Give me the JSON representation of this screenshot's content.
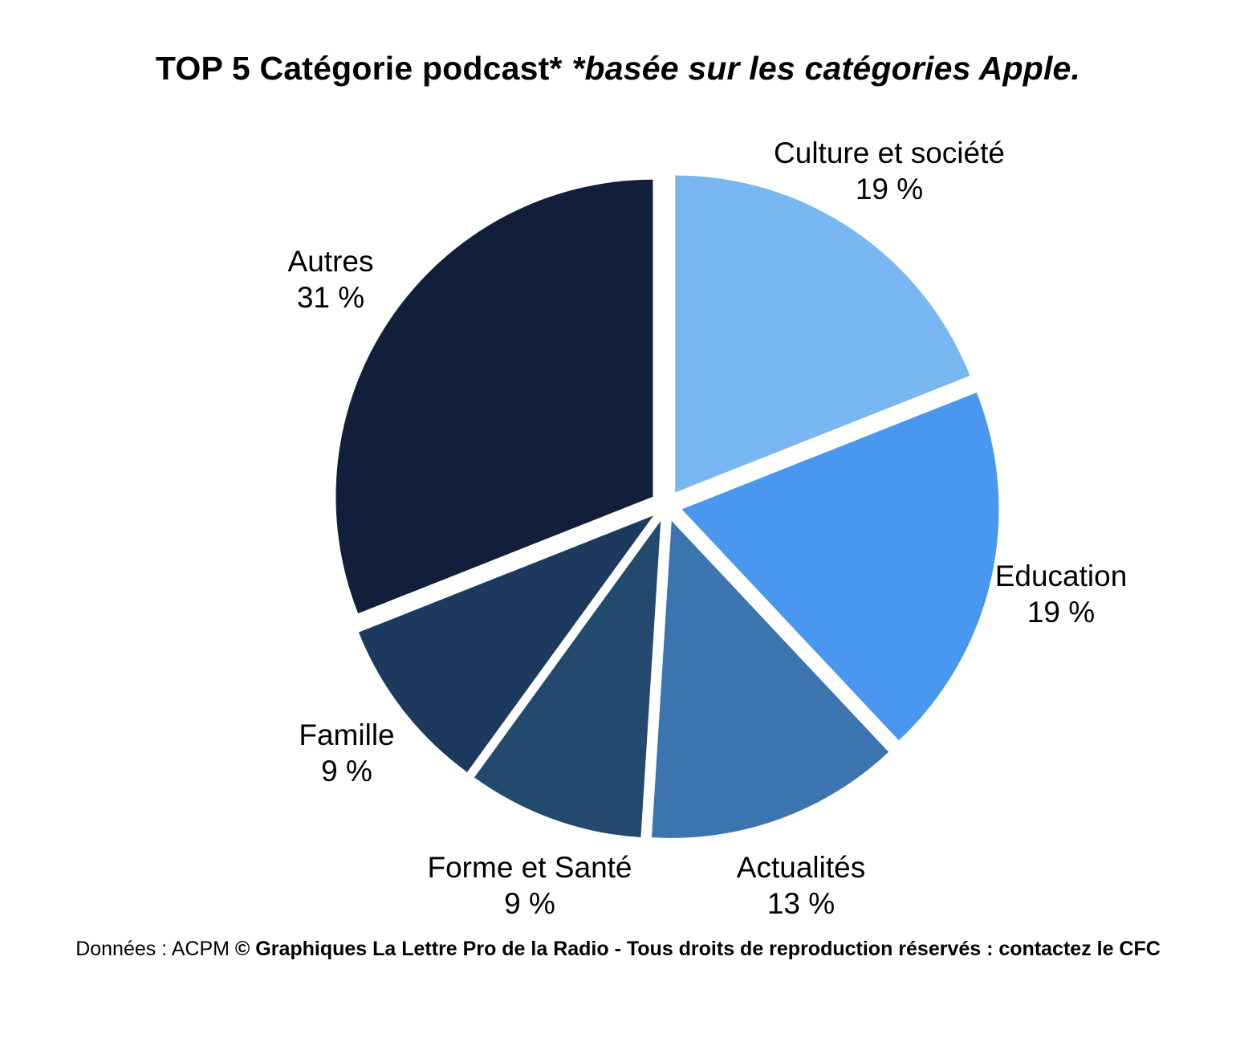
{
  "title": {
    "main": "TOP 5 Catégorie podcast*",
    "sub": " *basée sur les catégories Apple."
  },
  "footer": {
    "prefix": "Données : ACPM ",
    "rights": "© Graphiques La Lettre Pro de la Radio - Tous droits de reproduction réservés : contactez le CFC"
  },
  "chart_data": {
    "type": "pie",
    "title": "TOP 5 Catégorie podcast* *basée sur les catégories Apple.",
    "start_angle_deg": 0,
    "direction": "clockwise",
    "exploded": true,
    "legend_position": "outside-labels",
    "slices": [
      {
        "label": "Culture et société",
        "value": 19,
        "display": "19 %",
        "color": "#79b7f2"
      },
      {
        "label": "Education",
        "value": 19,
        "display": "19 %",
        "color": "#4a97ef"
      },
      {
        "label": "Actualités",
        "value": 13,
        "display": "13 %",
        "color": "#3c74b0"
      },
      {
        "label": "Forme et Santé",
        "value": 9,
        "display": "9 %",
        "color": "#24496f"
      },
      {
        "label": "Famille",
        "value": 9,
        "display": "9 %",
        "color": "#1d3a5e"
      },
      {
        "label": "Autres",
        "value": 31,
        "display": "31 %",
        "color": "#121f3a"
      }
    ]
  }
}
